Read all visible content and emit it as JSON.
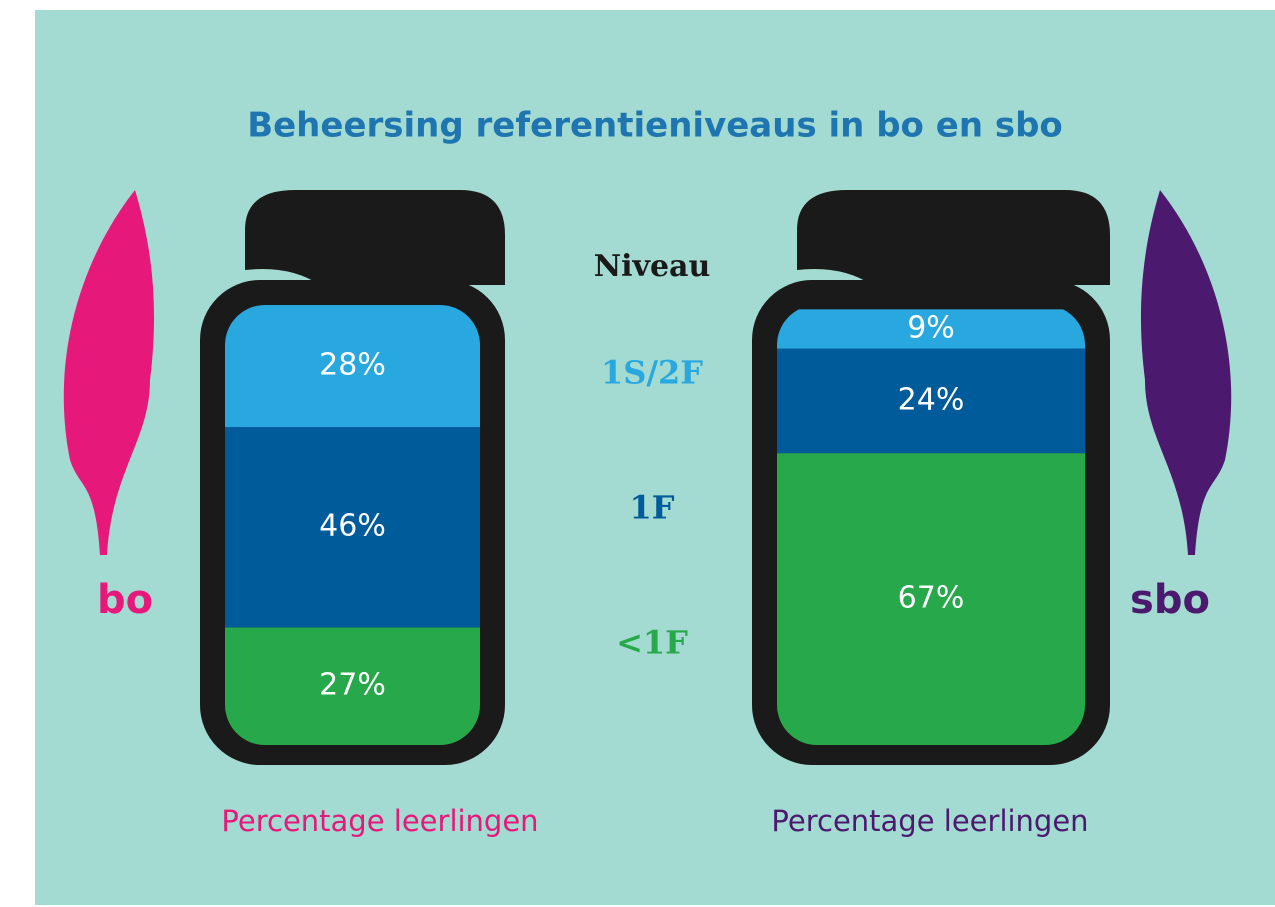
{
  "chart_data": {
    "type": "stacked-bar",
    "title": "Beheersing referentieniveaus in bo en sbo",
    "legend_title": "Niveau",
    "categories": [
      "bo",
      "sbo"
    ],
    "category_colors": [
      "#e6197b",
      "#4b1a6e"
    ],
    "category_axis_labels": [
      "Percentage leerlingen",
      "Percentage leerlingen"
    ],
    "series": [
      {
        "name": "1S/2F",
        "color": "#29a8e0",
        "values": [
          28,
          9
        ],
        "value_labels": [
          "28%",
          "9%"
        ]
      },
      {
        "name": "1F",
        "color": "#005b9a",
        "values": [
          46,
          24
        ],
        "value_labels": [
          "46%",
          "24%"
        ]
      },
      {
        "name": "<1F",
        "color": "#27a84a",
        "values": [
          27,
          67
        ],
        "value_labels": [
          "27%",
          "67%"
        ]
      }
    ]
  }
}
